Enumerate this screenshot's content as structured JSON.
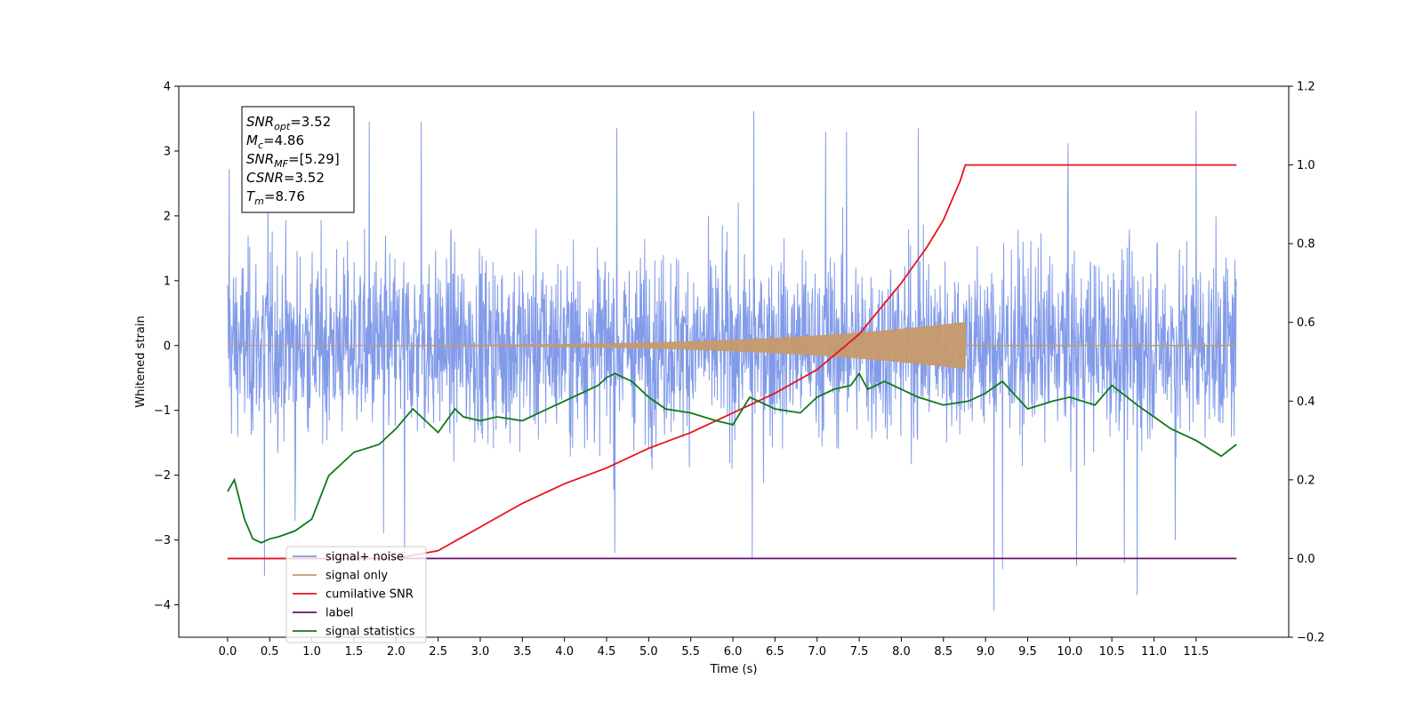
{
  "chart_data": {
    "type": "line",
    "xlabel": "Time (s)",
    "ylabel_left": "Whitened strain",
    "ylabel_right": "",
    "xlim": [
      -0.58,
      12.6
    ],
    "ylim_left": [
      -4.5,
      4.0
    ],
    "ylim_right": [
      -0.2,
      1.2
    ],
    "x_ticks": [
      "0.0",
      "0.5",
      "1.0",
      "1.5",
      "2.0",
      "2.5",
      "3.0",
      "3.5",
      "4.0",
      "4.5",
      "5.0",
      "5.5",
      "6.0",
      "6.5",
      "7.0",
      "7.5",
      "8.0",
      "8.5",
      "9.0",
      "9.5",
      "10.0",
      "10.5",
      "11.0",
      "11.5"
    ],
    "y_ticks_left": [
      "4",
      "3",
      "2",
      "1",
      "0",
      "−1",
      "−2",
      "−3",
      "−4"
    ],
    "y_ticks_right": [
      "1.2",
      "1.0",
      "0.8",
      "0.6",
      "0.4",
      "0.2",
      "0.0",
      "−0.2"
    ],
    "grid": false,
    "legend_position": "lower-left",
    "info_box": {
      "lines": [
        {
          "sym": "SNR",
          "sub": "opt",
          "rest": "=3.52"
        },
        {
          "sym": "M",
          "sub": "c",
          "rest": "=4.86"
        },
        {
          "sym": "SNR",
          "sub": "MF",
          "rest": "=[5.29]"
        },
        {
          "sym": "CSNR",
          "sub": "",
          "rest": "=3.52"
        },
        {
          "sym": "T",
          "sub": "m",
          "rest": "=8.76"
        }
      ]
    },
    "series": [
      {
        "name": "signal+ noise",
        "color": "#7b96e8",
        "axis": "left",
        "kind": "noise",
        "x_range": [
          0.0,
          11.98
        ],
        "typical_amplitude": 1.8,
        "peaks_high": [
          [
            0.02,
            2.72
          ],
          [
            0.48,
            2.62
          ],
          [
            1.68,
            3.45
          ],
          [
            2.3,
            3.45
          ],
          [
            4.62,
            3.35
          ],
          [
            6.25,
            3.62
          ],
          [
            7.1,
            3.3
          ],
          [
            7.35,
            3.3
          ],
          [
            8.2,
            3.35
          ],
          [
            9.98,
            3.12
          ],
          [
            11.5,
            3.62
          ]
        ],
        "peaks_low": [
          [
            0.44,
            -3.55
          ],
          [
            0.8,
            -2.7
          ],
          [
            1.85,
            -2.9
          ],
          [
            2.1,
            -3.3
          ],
          [
            4.6,
            -3.2
          ],
          [
            6.23,
            -3.3
          ],
          [
            9.1,
            -4.1
          ],
          [
            9.2,
            -3.45
          ],
          [
            10.08,
            -3.4
          ],
          [
            10.65,
            -3.35
          ],
          [
            10.8,
            -3.85
          ],
          [
            11.25,
            -3.0
          ]
        ]
      },
      {
        "name": "signal only",
        "color": "#c69a6a",
        "axis": "left",
        "kind": "chirp",
        "t_merge": 8.76,
        "peak_amplitude": 0.35,
        "x_range": [
          0.0,
          11.98
        ]
      },
      {
        "name": "cumilative SNR",
        "color": "#e8141c",
        "axis": "right",
        "x": [
          0.0,
          1.0,
          2.0,
          2.5,
          3.0,
          3.5,
          4.0,
          4.5,
          5.0,
          5.5,
          6.0,
          6.5,
          7.0,
          7.5,
          8.0,
          8.3,
          8.5,
          8.6,
          8.7,
          8.76,
          9.0,
          10.0,
          11.0,
          11.98
        ],
        "y": [
          0.0,
          0.0,
          0.0,
          0.02,
          0.08,
          0.14,
          0.19,
          0.23,
          0.28,
          0.32,
          0.37,
          0.42,
          0.48,
          0.57,
          0.7,
          0.79,
          0.86,
          0.91,
          0.96,
          1.0,
          1.0,
          1.0,
          1.0,
          1.0
        ]
      },
      {
        "name": "label",
        "color": "#6a0d6e",
        "axis": "right",
        "x": [
          0.0,
          11.98
        ],
        "y": [
          0.0,
          0.0
        ]
      },
      {
        "name": "signal statistics",
        "color": "#0e7a16",
        "axis": "right",
        "x": [
          0.0,
          0.08,
          0.2,
          0.3,
          0.4,
          0.5,
          0.6,
          0.8,
          1.0,
          1.2,
          1.5,
          1.8,
          2.0,
          2.2,
          2.4,
          2.5,
          2.7,
          2.8,
          3.0,
          3.2,
          3.5,
          3.8,
          4.0,
          4.2,
          4.4,
          4.5,
          4.6,
          4.8,
          5.0,
          5.2,
          5.5,
          5.8,
          6.0,
          6.2,
          6.5,
          6.8,
          7.0,
          7.2,
          7.4,
          7.5,
          7.6,
          7.8,
          8.0,
          8.2,
          8.5,
          8.8,
          9.0,
          9.2,
          9.5,
          9.8,
          10.0,
          10.3,
          10.5,
          10.8,
          11.0,
          11.2,
          11.5,
          11.8,
          11.98
        ],
        "y": [
          0.17,
          0.2,
          0.1,
          0.05,
          0.04,
          0.05,
          0.055,
          0.07,
          0.1,
          0.21,
          0.27,
          0.29,
          0.33,
          0.38,
          0.34,
          0.32,
          0.38,
          0.36,
          0.35,
          0.36,
          0.35,
          0.38,
          0.4,
          0.42,
          0.44,
          0.46,
          0.47,
          0.45,
          0.41,
          0.38,
          0.37,
          0.35,
          0.34,
          0.41,
          0.38,
          0.37,
          0.41,
          0.43,
          0.44,
          0.47,
          0.43,
          0.45,
          0.43,
          0.41,
          0.39,
          0.4,
          0.42,
          0.45,
          0.38,
          0.4,
          0.41,
          0.39,
          0.44,
          0.39,
          0.36,
          0.33,
          0.3,
          0.26,
          0.29
        ]
      }
    ]
  }
}
